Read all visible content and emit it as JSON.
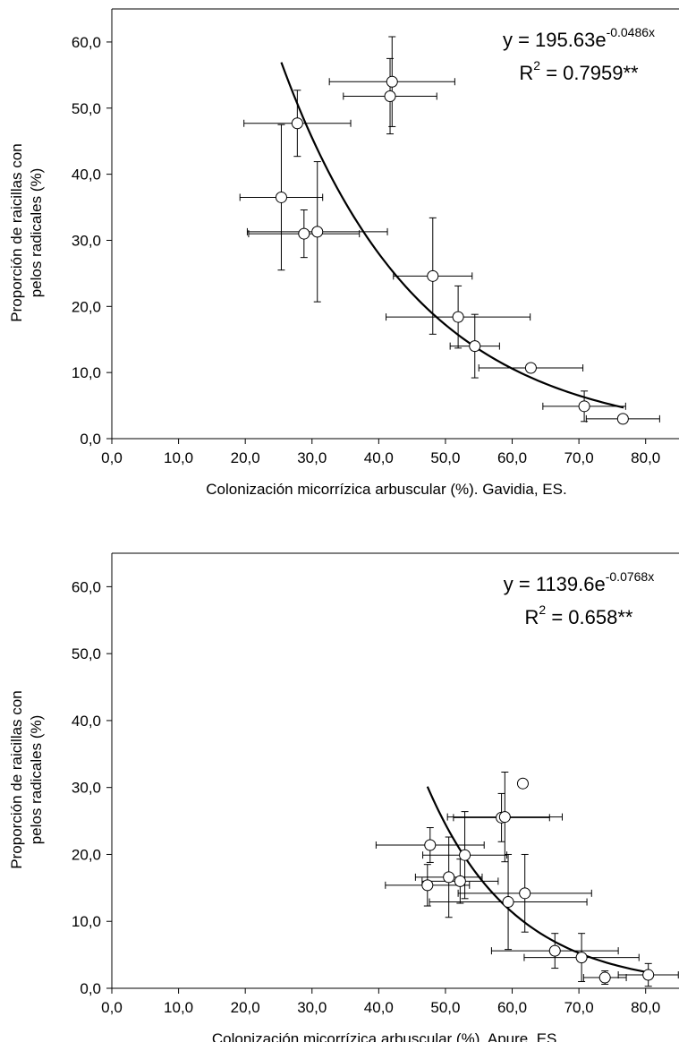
{
  "chart_data": [
    {
      "type": "scatter",
      "xlabel": "Colonización micorrízica arbuscular (%). Gavidia, ES.",
      "ylabel_lines": [
        "Proporción de raicillas con",
        "pelos radicales (%)"
      ],
      "xlim": [
        0,
        85
      ],
      "ylim": [
        0,
        65
      ],
      "xticks": [
        "0,0",
        "10,0",
        "20,0",
        "30,0",
        "40,0",
        "50,0",
        "60,0",
        "70,0",
        "80,0"
      ],
      "yticks": [
        "0,0",
        "10,0",
        "20,0",
        "30,0",
        "40,0",
        "50,0",
        "60,0"
      ],
      "equation": {
        "prefix": "y = 195.63e",
        "exponent": "-0.0486x"
      },
      "r2": {
        "prefix": "R",
        "sup": "2",
        "suffix": " = 0.7959**"
      },
      "fit": {
        "a": 195.63,
        "b": -0.0486,
        "x_range": [
          25.4,
          76.7
        ]
      },
      "points": [
        {
          "x": 25.4,
          "y": 36.5,
          "xerr": 6.2,
          "yerr": 11.0
        },
        {
          "x": 27.8,
          "y": 47.7,
          "xerr": 8.0,
          "yerr": 5.0
        },
        {
          "x": 28.8,
          "y": 31.0,
          "xerr": 8.3,
          "yerr": 3.6
        },
        {
          "x": 30.8,
          "y": 31.3,
          "xerr": 10.5,
          "yerr": 10.6
        },
        {
          "x": 41.7,
          "y": 51.8,
          "xerr": 7.0,
          "yerr": 5.7
        },
        {
          "x": 42.0,
          "y": 54.0,
          "xerr": 9.4,
          "yerr": 6.8
        },
        {
          "x": 48.1,
          "y": 24.6,
          "xerr": 5.9,
          "yerr": 8.8
        },
        {
          "x": 51.9,
          "y": 18.4,
          "xerr": 10.8,
          "yerr": 4.7
        },
        {
          "x": 54.4,
          "y": 14.0,
          "xerr": 3.7,
          "yerr": 4.8
        },
        {
          "x": 62.8,
          "y": 10.7,
          "xerr": 7.8,
          "yerr": 0.5
        },
        {
          "x": 70.8,
          "y": 4.9,
          "xerr": 6.2,
          "yerr": 2.3
        },
        {
          "x": 76.6,
          "y": 3.0,
          "xerr": 5.5,
          "yerr": 0.3
        }
      ]
    },
    {
      "type": "scatter",
      "xlabel": "Colonización micorrízica arbuscular (%). Apure, ES.",
      "ylabel_lines": [
        "Proporción de raicillas con",
        "pelos radicales (%)"
      ],
      "xlim": [
        0,
        85
      ],
      "ylim": [
        0,
        65
      ],
      "xticks": [
        "0,0",
        "10,0",
        "20,0",
        "30,0",
        "40,0",
        "50,0",
        "60,0",
        "70,0",
        "80,0"
      ],
      "yticks": [
        "0,0",
        "10,0",
        "20,0",
        "30,0",
        "40,0",
        "50,0",
        "60,0"
      ],
      "equation": {
        "prefix": "y = 1139.6e",
        "exponent": "-0.0768x"
      },
      "r2": {
        "prefix": "R",
        "sup": "2",
        "suffix": " = 0.658**"
      },
      "fit": {
        "a": 1139.6,
        "b": -0.0768,
        "x_range": [
          47.3,
          80.3
        ]
      },
      "points": [
        {
          "x": 47.3,
          "y": 15.4,
          "xerr": 6.3,
          "yerr": 3.1
        },
        {
          "x": 47.7,
          "y": 21.4,
          "xerr": 8.1,
          "yerr": 2.6
        },
        {
          "x": 50.5,
          "y": 16.6,
          "xerr": 5.0,
          "yerr": 6.0
        },
        {
          "x": 52.2,
          "y": 16.0,
          "xerr": 5.7,
          "yerr": 3.3
        },
        {
          "x": 52.9,
          "y": 19.9,
          "xerr": 6.3,
          "yerr": 6.5
        },
        {
          "x": 58.4,
          "y": 25.5,
          "xerr": 7.2,
          "yerr": 3.6
        },
        {
          "x": 58.9,
          "y": 25.6,
          "xerr": 8.6,
          "yerr": 6.7
        },
        {
          "x": 59.4,
          "y": 12.9,
          "xerr": 11.8,
          "yerr": 7.1
        },
        {
          "x": 61.6,
          "y": 30.6,
          "xerr": 0,
          "yerr": 0
        },
        {
          "x": 61.9,
          "y": 14.2,
          "xerr": 10.0,
          "yerr": 5.8
        },
        {
          "x": 66.4,
          "y": 5.6,
          "xerr": 9.5,
          "yerr": 2.6
        },
        {
          "x": 70.4,
          "y": 4.6,
          "xerr": 8.6,
          "yerr": 3.6
        },
        {
          "x": 73.9,
          "y": 1.6,
          "xerr": 3.2,
          "yerr": 1.0
        },
        {
          "x": 80.4,
          "y": 2.0,
          "xerr": 4.5,
          "yerr": 1.7
        }
      ]
    }
  ]
}
